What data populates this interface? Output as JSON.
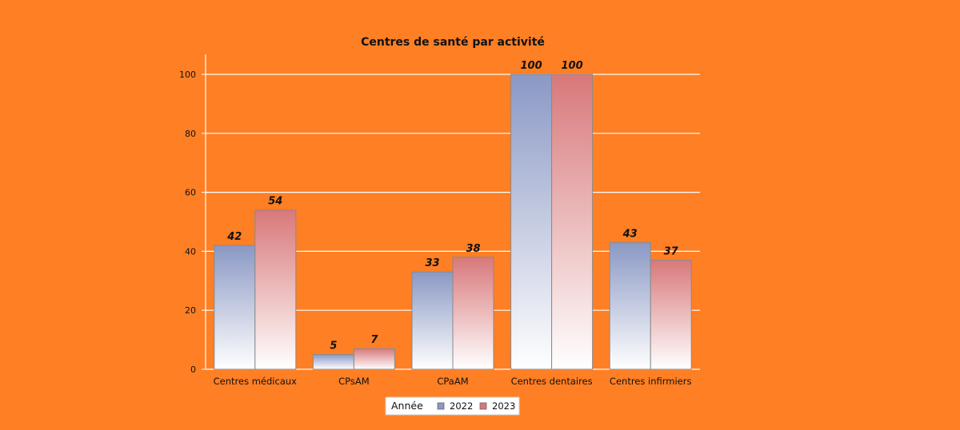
{
  "chart_data": {
    "type": "bar",
    "title": "Centres de santé par activité",
    "categories": [
      "Centres médicaux",
      "CPsAM",
      "CPaAM",
      "Centres dentaires",
      "Centres infirmiers"
    ],
    "series": [
      {
        "name": "2022",
        "values": [
          42,
          5,
          33,
          100,
          43
        ],
        "color": "#8a98c4"
      },
      {
        "name": "2023",
        "values": [
          54,
          7,
          38,
          100,
          37
        ],
        "color": "#d8787a"
      }
    ],
    "ylim": [
      0,
      100
    ],
    "yticks": [
      0,
      20,
      40,
      60,
      80,
      100
    ],
    "xlabel": "",
    "ylabel": "",
    "grid": true,
    "legend": {
      "title": "Année",
      "placement": "bottom-center"
    },
    "background": "#ff7f24",
    "data_labels": true
  }
}
